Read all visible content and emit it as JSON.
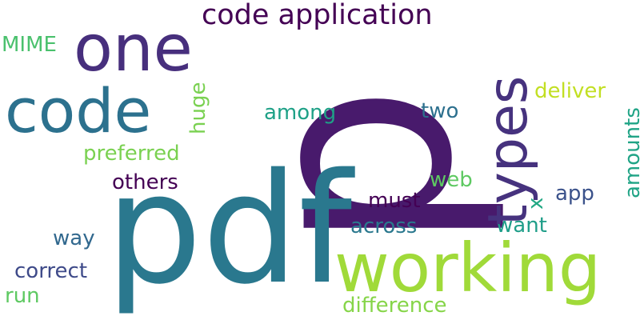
{
  "words": {
    "p": {
      "text": "p",
      "color": "#481a6c"
    },
    "pdf": {
      "text": "pdf",
      "color": "#2a788e"
    },
    "working": {
      "text": "working",
      "color": "#a0da39"
    },
    "one": {
      "text": "one",
      "color": "#472f7d"
    },
    "code": {
      "text": "code",
      "color": "#2c718e"
    },
    "types": {
      "text": "types",
      "color": "#46327e"
    },
    "code_application": {
      "text": "code application",
      "color": "#440154"
    },
    "mime": {
      "text": "MIME",
      "color": "#4ac16d"
    },
    "huge": {
      "text": "huge",
      "color": "#7ad151"
    },
    "among": {
      "text": "among",
      "color": "#1fa187"
    },
    "two": {
      "text": "two",
      "color": "#2d708e"
    },
    "deliver": {
      "text": "deliver",
      "color": "#c2df23"
    },
    "amounts": {
      "text": "amounts",
      "color": "#20a486"
    },
    "preferred": {
      "text": "preferred",
      "color": "#7ad151"
    },
    "others": {
      "text": "others",
      "color": "#440154"
    },
    "web": {
      "text": "web",
      "color": "#5ec962"
    },
    "x": {
      "text": "x",
      "color": "#22a884"
    },
    "app": {
      "text": "app",
      "color": "#3b528b"
    },
    "must": {
      "text": "must",
      "color": "#440154"
    },
    "want": {
      "text": "want",
      "color": "#1f9e89"
    },
    "across": {
      "text": "across",
      "color": "#2a788e"
    },
    "way": {
      "text": "way",
      "color": "#31688e"
    },
    "correct": {
      "text": "correct",
      "color": "#3e4a89"
    },
    "run": {
      "text": "run",
      "color": "#5ec962"
    },
    "difference": {
      "text": "difference",
      "color": "#86d549"
    }
  }
}
